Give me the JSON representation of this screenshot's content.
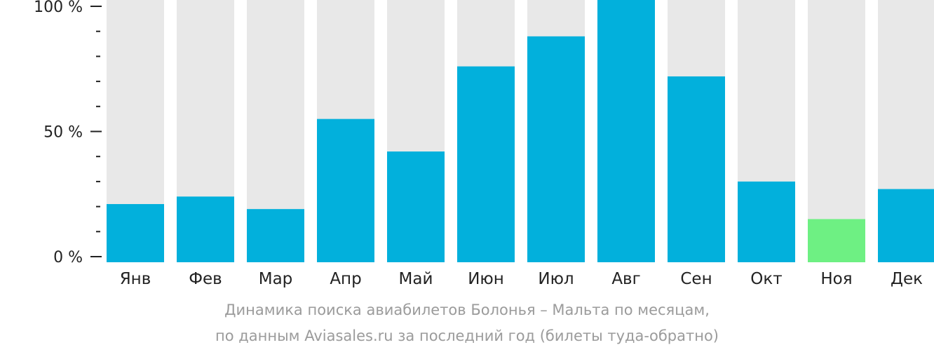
{
  "chart_data": {
    "type": "bar",
    "categories": [
      "Янв",
      "Фев",
      "Мар",
      "Апр",
      "Май",
      "Июн",
      "Июл",
      "Авг",
      "Сен",
      "Окт",
      "Ноя",
      "Дек"
    ],
    "values": [
      21,
      24,
      19,
      55,
      42,
      76,
      88,
      100,
      72,
      30,
      15,
      27
    ],
    "highlight_index": 10,
    "ylim": [
      0,
      100
    ],
    "yticks": [
      {
        "value": 100,
        "label": "100 %"
      },
      {
        "value": 50,
        "label": "50 %"
      },
      {
        "value": 0,
        "label": "0 %"
      }
    ],
    "minor_tick_step": 10,
    "grid": false,
    "colors": {
      "bar": "#02b0dc",
      "highlight": "#6ef083",
      "background_bar": "#e8e8e8",
      "axis": "#222222",
      "tick_label": "#222222",
      "caption": "#9b9b9b"
    }
  },
  "caption": {
    "line1": "Динамика поиска авиабилетов Болонья – Мальта по месяцам,",
    "line2": "по данным Aviasales.ru за последний год (билеты туда-обратно)"
  }
}
